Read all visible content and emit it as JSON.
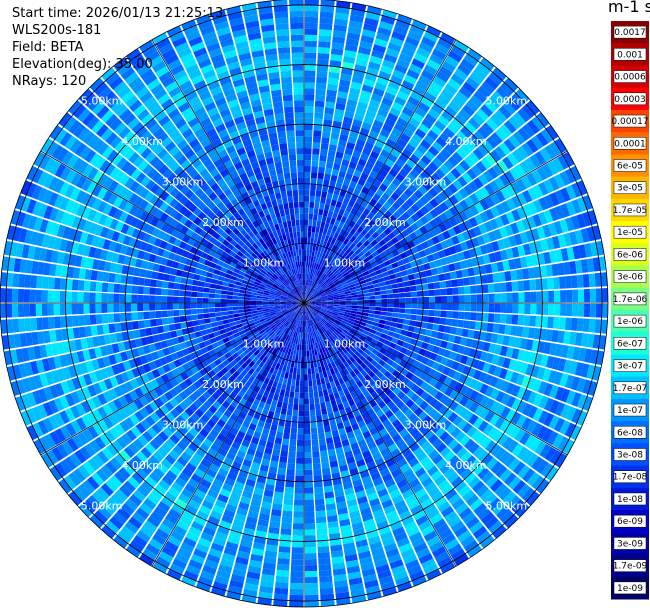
{
  "info": {
    "start_time": "Start time: 2026/01/13 21:25:13",
    "instrument": "WLS200s-181",
    "field": "Field: BETA",
    "elevation": "Elevation(deg): 35.00",
    "nrays": "NRays: 120"
  },
  "colorbar_title": "m-1 sr-1",
  "chart_data": {
    "type": "heatmap",
    "subtype": "polar-ppi",
    "n_rays": 120,
    "range_rings_km": [
      1,
      2,
      3,
      4,
      5
    ],
    "ring_labels": [
      "1.00km",
      "2.00km",
      "3.00km",
      "4.00km",
      "5.00km"
    ],
    "max_range_km": 5.1,
    "colorbar": {
      "labels": [
        "0.0017",
        "0.001",
        "0.0006",
        "0.0003",
        "0.00017",
        "0.0001",
        "6e-05",
        "3e-05",
        "1.7e-05",
        "1e-05",
        "6e-06",
        "3e-06",
        "1.7e-06",
        "1e-06",
        "6e-07",
        "3e-07",
        "1.7e-07",
        "1e-07",
        "6e-08",
        "3e-08",
        "1.7e-08",
        "1e-08",
        "6e-09",
        "3e-09",
        "1.7e-09",
        "1e-09"
      ],
      "colors": [
        "#8b0000",
        "#b20000",
        "#d40000",
        "#ff0000",
        "#ff4400",
        "#ff6a00",
        "#ff9000",
        "#ffb400",
        "#ffd800",
        "#ffff00",
        "#d8ff1e",
        "#a8ff50",
        "#78ff80",
        "#48ffb0",
        "#1effd8",
        "#00e8ff",
        "#00c0ff",
        "#0096ff",
        "#0070ff",
        "#0050ff",
        "#0030f0",
        "#0018d8",
        "#0000c8",
        "#0000a8",
        "#000088",
        "#000066"
      ]
    },
    "range_profile_beta": [
      {
        "range_km": 0.0,
        "beta": 1e-08
      },
      {
        "range_km": 1.0,
        "beta": 1.5e-08
      },
      {
        "range_km": 2.0,
        "beta": 3e-08
      },
      {
        "range_km": 3.0,
        "beta": 6e-08
      },
      {
        "range_km": 4.0,
        "beta": 1.7e-07
      },
      {
        "range_km": 4.5,
        "beta": 1e-07
      },
      {
        "range_km": 5.1,
        "beta": 6e-08
      }
    ]
  }
}
